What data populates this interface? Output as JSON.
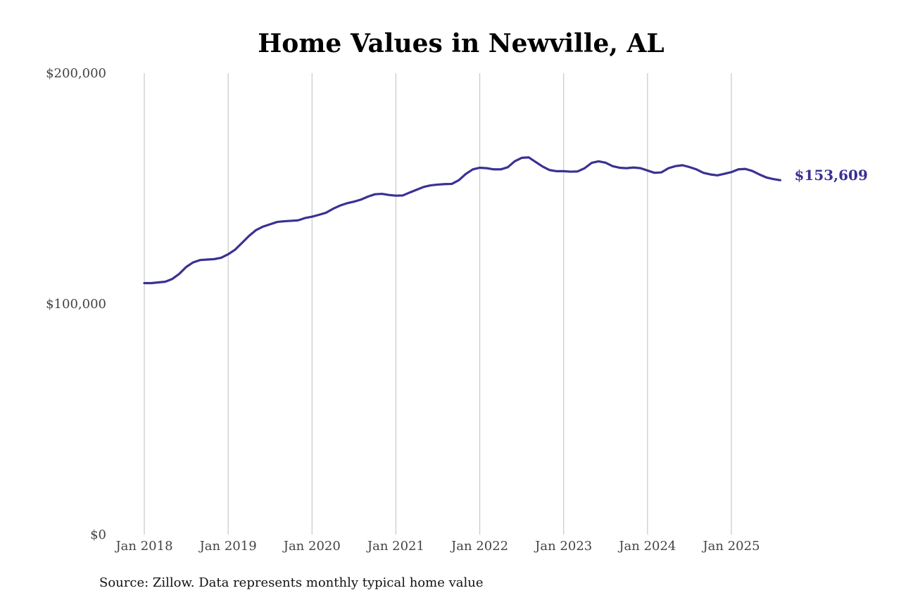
{
  "chart_data": {
    "type": "line",
    "title": "Home Values in Newville, AL",
    "source_note": "Source: Zillow. Data represents monthly typical home value",
    "ylim": [
      0,
      200000
    ],
    "y_ticks": [
      {
        "value": 0,
        "label": "$0"
      },
      {
        "value": 100000,
        "label": "$100,000"
      },
      {
        "value": 200000,
        "label": "$200,000"
      }
    ],
    "x_ticks": [
      {
        "value": "2018-01",
        "label": "Jan 2018"
      },
      {
        "value": "2019-01",
        "label": "Jan 2019"
      },
      {
        "value": "2020-01",
        "label": "Jan 2020"
      },
      {
        "value": "2021-01",
        "label": "Jan 2021"
      },
      {
        "value": "2022-01",
        "label": "Jan 2022"
      },
      {
        "value": "2023-01",
        "label": "Jan 2023"
      },
      {
        "value": "2024-01",
        "label": "Jan 2024"
      },
      {
        "value": "2025-01",
        "label": "Jan 2025"
      }
    ],
    "grid": "vertical",
    "end_label": "$153,609",
    "series": [
      {
        "color": "#3a3193",
        "x": [
          "2018-01",
          "2018-02",
          "2018-03",
          "2018-04",
          "2018-05",
          "2018-06",
          "2018-07",
          "2018-08",
          "2018-09",
          "2018-10",
          "2018-11",
          "2018-12",
          "2019-01",
          "2019-02",
          "2019-03",
          "2019-04",
          "2019-05",
          "2019-06",
          "2019-07",
          "2019-08",
          "2019-09",
          "2019-10",
          "2019-11",
          "2019-12",
          "2020-01",
          "2020-02",
          "2020-03",
          "2020-04",
          "2020-05",
          "2020-06",
          "2020-07",
          "2020-08",
          "2020-09",
          "2020-10",
          "2020-11",
          "2020-12",
          "2021-01",
          "2021-02",
          "2021-03",
          "2021-04",
          "2021-05",
          "2021-06",
          "2021-07",
          "2021-08",
          "2021-09",
          "2021-10",
          "2021-11",
          "2021-12",
          "2022-01",
          "2022-02",
          "2022-03",
          "2022-04",
          "2022-05",
          "2022-06",
          "2022-07",
          "2022-08",
          "2022-09",
          "2022-10",
          "2022-11",
          "2022-12",
          "2023-01",
          "2023-02",
          "2023-03",
          "2023-04",
          "2023-05",
          "2023-06",
          "2023-07",
          "2023-08",
          "2023-09",
          "2023-10",
          "2023-11",
          "2023-12",
          "2024-01",
          "2024-02",
          "2024-03",
          "2024-04",
          "2024-05",
          "2024-06",
          "2024-07",
          "2024-08",
          "2024-09",
          "2024-10",
          "2024-11",
          "2024-12",
          "2025-01",
          "2025-02",
          "2025-03",
          "2025-04",
          "2025-05",
          "2025-06",
          "2025-07",
          "2025-08"
        ],
        "values": [
          109000,
          109000,
          109300,
          109600,
          110800,
          113000,
          116000,
          118000,
          119000,
          119200,
          119400,
          120000,
          121500,
          123500,
          126500,
          129500,
          132000,
          133500,
          134500,
          135500,
          135800,
          136000,
          136200,
          137200,
          137800,
          138600,
          139500,
          141200,
          142600,
          143600,
          144300,
          145200,
          146500,
          147500,
          147700,
          147200,
          146900,
          147000,
          148300,
          149500,
          150700,
          151400,
          151700,
          151900,
          152000,
          153600,
          156300,
          158300,
          159000,
          158800,
          158300,
          158300,
          159200,
          161800,
          163300,
          163500,
          161500,
          159500,
          158000,
          157500,
          157500,
          157300,
          157400,
          158800,
          161100,
          161800,
          161200,
          159700,
          159000,
          158800,
          159100,
          158800,
          157800,
          156800,
          157000,
          158800,
          159700,
          160100,
          159300,
          158300,
          156800,
          156100,
          155700,
          156400,
          157100,
          158300,
          158500,
          157600,
          156100,
          154800,
          154100,
          153609
        ]
      }
    ]
  }
}
